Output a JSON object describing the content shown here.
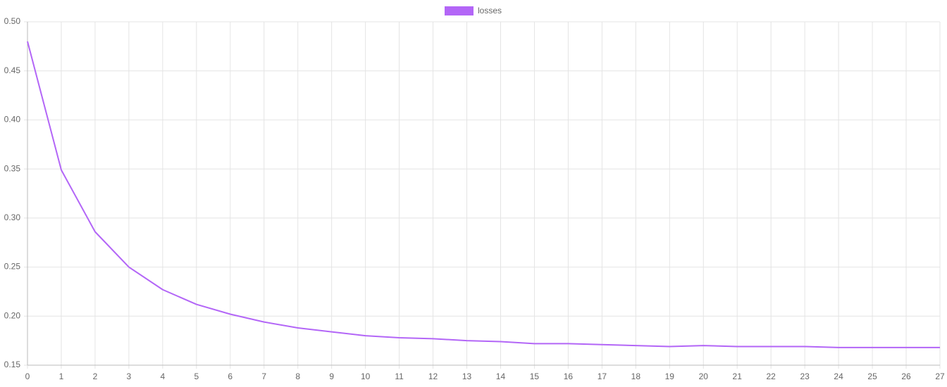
{
  "chart_data": {
    "type": "line",
    "x": [
      0,
      1,
      2,
      3,
      4,
      5,
      6,
      7,
      8,
      9,
      10,
      11,
      12,
      13,
      14,
      15,
      16,
      17,
      18,
      19,
      20,
      21,
      22,
      23,
      24,
      25,
      26,
      27
    ],
    "series": [
      {
        "name": "losses",
        "color": "#b366f7",
        "values": [
          0.48,
          0.349,
          0.286,
          0.25,
          0.227,
          0.212,
          0.202,
          0.194,
          0.188,
          0.184,
          0.18,
          0.178,
          0.177,
          0.175,
          0.174,
          0.172,
          0.172,
          0.171,
          0.17,
          0.169,
          0.17,
          0.169,
          0.169,
          0.169,
          0.168,
          0.168,
          0.168,
          0.168
        ]
      }
    ],
    "xlim": [
      0,
      27
    ],
    "xticks": [
      0,
      1,
      2,
      3,
      4,
      5,
      6,
      7,
      8,
      9,
      10,
      11,
      12,
      13,
      14,
      15,
      16,
      17,
      18,
      19,
      20,
      21,
      22,
      23,
      24,
      25,
      26,
      27
    ],
    "ylim": [
      0.15,
      0.5
    ],
    "yticks": [
      0.15,
      {
        "value": 0.2,
        "label": "0.20"
      },
      0.25,
      {
        "value": 0.3,
        "label": "0.30"
      },
      0.35,
      {
        "value": 0.4,
        "label": "0.40"
      },
      0.45,
      {
        "value": 0.5,
        "label": "0.50"
      }
    ],
    "grid": true,
    "legend": "top"
  }
}
